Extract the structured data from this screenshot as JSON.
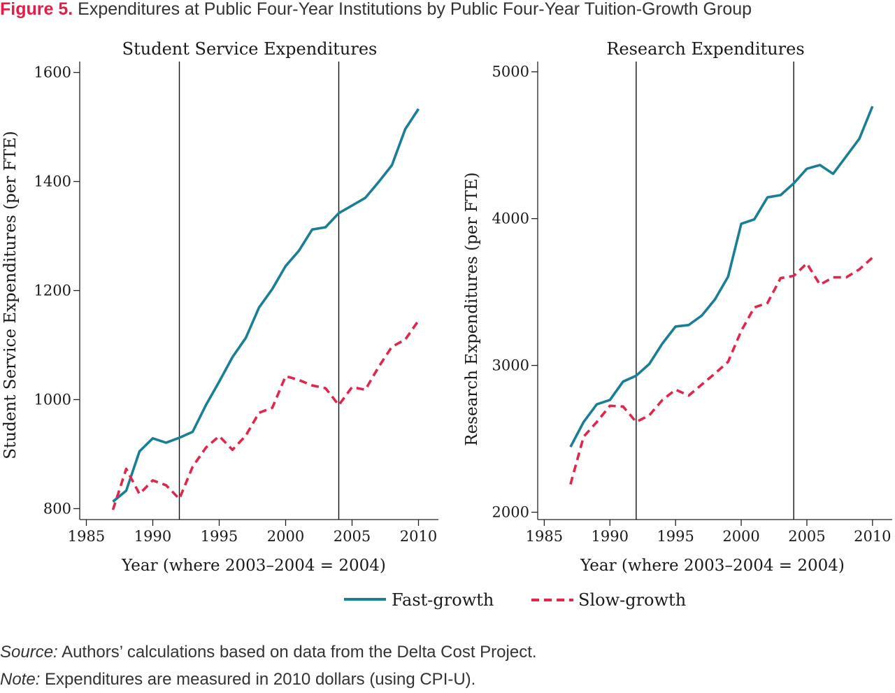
{
  "figure": {
    "label": "Figure 5.",
    "title": "Expenditures at Public Four-Year Institutions by Public Four-Year Tuition-Growth Group"
  },
  "colors": {
    "fast": "#1a7f96",
    "slow": "#e0264a",
    "title_label": "#e11d48"
  },
  "chart_data": [
    {
      "type": "line",
      "title": "Student Service Expenditures",
      "xlabel": "Year (where 2003–2004 = 2004)",
      "ylabel": "Student Service Expenditures (per FTE)",
      "xlim": [
        1984.5,
        2011.5
      ],
      "ylim": [
        780,
        1620
      ],
      "xticks": [
        1985,
        1990,
        1995,
        2000,
        2005,
        2010
      ],
      "yticks": [
        800,
        1000,
        1200,
        1400,
        1600
      ],
      "vlines": [
        1992,
        2004
      ],
      "grid": false,
      "legend": "bottom-center",
      "x": [
        1987,
        1988,
        1989,
        1990,
        1991,
        1992,
        1993,
        1994,
        1995,
        1996,
        1997,
        1998,
        1999,
        2000,
        2001,
        2002,
        2003,
        2004,
        2005,
        2006,
        2007,
        2008,
        2009,
        2010
      ],
      "series": [
        {
          "name": "Fast-growth",
          "style": "solid",
          "values": [
            813,
            833,
            905,
            929,
            921,
            930,
            941,
            990,
            1033,
            1078,
            1113,
            1169,
            1203,
            1245,
            1273,
            1312,
            1316,
            1342,
            1356,
            1370,
            1399,
            1430,
            1496,
            1533
          ]
        },
        {
          "name": "Slow-growth",
          "style": "dashed",
          "values": [
            798,
            873,
            827,
            852,
            843,
            818,
            877,
            912,
            933,
            908,
            934,
            976,
            985,
            1043,
            1036,
            1026,
            1021,
            990,
            1023,
            1018,
            1060,
            1097,
            1110,
            1145
          ]
        }
      ]
    },
    {
      "type": "line",
      "title": "Research Expenditures",
      "xlabel": "Year (where 2003–2004 = 2004)",
      "ylabel": "Research Expenditures (per FTE)",
      "xlim": [
        1984.5,
        2011.5
      ],
      "ylim": [
        1950,
        5070
      ],
      "xticks": [
        1985,
        1990,
        1995,
        2000,
        2005,
        2010
      ],
      "yticks": [
        2000,
        3000,
        4000,
        5000
      ],
      "vlines": [
        1992,
        2004
      ],
      "grid": false,
      "legend": "bottom-center",
      "x": [
        1987,
        1988,
        1989,
        1990,
        1991,
        1992,
        1993,
        1994,
        1995,
        1996,
        1997,
        1998,
        1999,
        2000,
        2001,
        2002,
        2003,
        2004,
        2005,
        2006,
        2007,
        2008,
        2009,
        2010
      ],
      "series": [
        {
          "name": "Fast-growth",
          "style": "solid",
          "values": [
            2445,
            2615,
            2735,
            2765,
            2890,
            2930,
            3010,
            3150,
            3265,
            3275,
            3340,
            3450,
            3605,
            3965,
            3995,
            4145,
            4160,
            4240,
            4340,
            4365,
            4305,
            4425,
            4545,
            4765
          ]
        },
        {
          "name": "Slow-growth",
          "style": "dashed",
          "values": [
            2190,
            2515,
            2615,
            2725,
            2720,
            2615,
            2660,
            2765,
            2835,
            2795,
            2870,
            2945,
            3025,
            3235,
            3395,
            3425,
            3595,
            3610,
            3695,
            3550,
            3600,
            3600,
            3655,
            3735
          ]
        }
      ]
    }
  ],
  "legend": {
    "fast_label": "Fast-growth",
    "slow_label": "Slow-growth"
  },
  "notes": {
    "source_label": "Source:",
    "source_text": " Authors’ calculations based on data from the Delta Cost Project.",
    "note_label": "Note:",
    "note_text": " Expenditures are measured in 2010 dollars (using CPI-U)."
  }
}
